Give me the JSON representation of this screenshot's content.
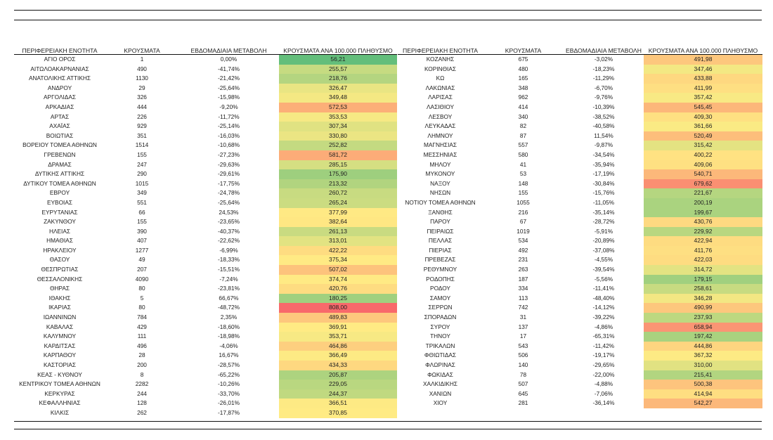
{
  "headers": [
    "ΠΕΡΙΦΕΡΕΙΑΚΗ ΕΝΟΤΗΤΑ",
    "ΚΡΟΥΣΜΑΤΑ",
    "ΕΒΔΟΜΑΔΙΑΙΑ ΜΕΤΑΒΟΛΗ",
    "ΚΡΟΥΣΜΑΤΑ ΑΝΑ 100.000 ΠΛΗΘΥΣΜΟ"
  ],
  "heat_colors": {
    "green": "#63be7b",
    "yellow": "#ffeb84",
    "red": "#f8696b"
  },
  "heat_range": {
    "min": 56.21,
    "mid": 370.85,
    "max": 808.0
  },
  "left_rows": [
    [
      "ΑΓΙΟ ΟΡΟΣ",
      "1",
      "0,00%",
      "56,21"
    ],
    [
      "ΑΙΤΩΛΟΑΚΑΡΝΑΝΙΑΣ",
      "490",
      "-41,74%",
      "255,57"
    ],
    [
      "ΑΝΑΤΟΛΙΚΗΣ ΑΤΤΙΚΗΣ",
      "1130",
      "-21,42%",
      "218,76"
    ],
    [
      "ΑΝΔΡΟΥ",
      "29",
      "-25,64%",
      "326,47"
    ],
    [
      "ΑΡΓΟΛΙΔΑΣ",
      "326",
      "-15,98%",
      "349,48"
    ],
    [
      "ΑΡΚΑΔΙΑΣ",
      "444",
      "-9,20%",
      "572,53"
    ],
    [
      "ΑΡΤΑΣ",
      "226",
      "-11,72%",
      "353,53"
    ],
    [
      "ΑΧΑΪΑΣ",
      "929",
      "-25,14%",
      "307,34"
    ],
    [
      "ΒΟΙΩΤΙΑΣ",
      "351",
      "-16,03%",
      "330,80"
    ],
    [
      "ΒΟΡΕΙΟΥ ΤΟΜΕΑ ΑΘΗΝΩΝ",
      "1514",
      "-10,68%",
      "252,82"
    ],
    [
      "ΓΡΕΒΕΝΩΝ",
      "155",
      "-27,23%",
      "581,72"
    ],
    [
      "ΔΡΑΜΑΣ",
      "247",
      "-29,63%",
      "285,15"
    ],
    [
      "ΔΥΤΙΚΗΣ ΑΤΤΙΚΗΣ",
      "290",
      "-29,61%",
      "175,90"
    ],
    [
      "ΔΥΤΙΚΟΥ ΤΟΜΕΑ ΑΘΗΝΩΝ",
      "1015",
      "-17,75%",
      "213,32"
    ],
    [
      "ΕΒΡΟΥ",
      "349",
      "-24,78%",
      "260,72"
    ],
    [
      "ΕΥΒΟΙΑΣ",
      "551",
      "-25,64%",
      "265,24"
    ],
    [
      "ΕΥΡΥΤΑΝΙΑΣ",
      "66",
      "24,53%",
      "377,99"
    ],
    [
      "ΖΑΚΥΝΘΟΥ",
      "155",
      "-23,65%",
      "382,64"
    ],
    [
      "ΗΛΕΙΑΣ",
      "390",
      "-40,37%",
      "261,13"
    ],
    [
      "ΗΜΑΘΙΑΣ",
      "407",
      "-22,62%",
      "313,01"
    ],
    [
      "ΗΡΑΚΛΕΙΟΥ",
      "1277",
      "-6,99%",
      "422,22"
    ],
    [
      "ΘΑΣΟΥ",
      "49",
      "-18,33%",
      "375,34"
    ],
    [
      "ΘΕΣΠΡΩΤΙΑΣ",
      "207",
      "-15,51%",
      "507,02"
    ],
    [
      "ΘΕΣΣΑΛΟΝΙΚΗΣ",
      "4090",
      "-7,24%",
      "374,74"
    ],
    [
      "ΘΗΡΑΣ",
      "80",
      "-23,81%",
      "420,76"
    ],
    [
      "ΙΘΑΚΗΣ",
      "5",
      "66,67%",
      "180,25"
    ],
    [
      "ΙΚΑΡΙΑΣ",
      "80",
      "-48,72%",
      "808,00"
    ],
    [
      "ΙΩΑΝΝΙΝΩΝ",
      "784",
      "2,35%",
      "489,83"
    ],
    [
      "ΚΑΒΑΛΑΣ",
      "429",
      "-18,60%",
      "369,91"
    ],
    [
      "ΚΑΛΥΜΝΟΥ",
      "111",
      "-18,98%",
      "353,71"
    ],
    [
      "ΚΑΡΔΙΤΣΑΣ",
      "496",
      "-4,06%",
      "464,86"
    ],
    [
      "ΚΑΡΠΑΘΟΥ",
      "28",
      "16,67%",
      "366,49"
    ],
    [
      "ΚΑΣΤΟΡΙΑΣ",
      "200",
      "-28,57%",
      "434,33"
    ],
    [
      "ΚΕΑΣ - ΚΥΘΝΟΥ",
      "8",
      "-65,22%",
      "205,87"
    ],
    [
      "ΚΕΝΤΡΙΚΟΥ ΤΟΜΕΑ ΑΘΗΝΩΝ",
      "2282",
      "-10,26%",
      "229,05"
    ],
    [
      "ΚΕΡΚΥΡΑΣ",
      "244",
      "-33,70%",
      "244,37"
    ],
    [
      "ΚΕΦΑΛΛΗΝΙΑΣ",
      "128",
      "-26,01%",
      "366,51"
    ],
    [
      "ΚΙΛΚΙΣ",
      "262",
      "-17,87%",
      "370,85"
    ]
  ],
  "right_rows": [
    [
      "ΚΟΖΑΝΗΣ",
      "675",
      "-3,02%",
      "491,98"
    ],
    [
      "ΚΟΡΙΝΘΙΑΣ",
      "480",
      "-18,23%",
      "347,46"
    ],
    [
      "ΚΩ",
      "165",
      "-11,29%",
      "433,88"
    ],
    [
      "ΛΑΚΩΝΙΑΣ",
      "348",
      "-6,70%",
      "411,99"
    ],
    [
      "ΛΑΡΙΣΑΣ",
      "962",
      "-9,76%",
      "357,42"
    ],
    [
      "ΛΑΣΙΘΙΟΥ",
      "414",
      "-10,39%",
      "545,45"
    ],
    [
      "ΛΕΣΒΟΥ",
      "340",
      "-38,52%",
      "409,30"
    ],
    [
      "ΛΕΥΚΑΔΑΣ",
      "82",
      "-40,58%",
      "361,66"
    ],
    [
      "ΛΗΜΝΟΥ",
      "87",
      "11,54%",
      "520,49"
    ],
    [
      "ΜΑΓΝΗΣΙΑΣ",
      "557",
      "-9,87%",
      "315,42"
    ],
    [
      "ΜΕΣΣΗΝΙΑΣ",
      "580",
      "-34,54%",
      "400,22"
    ],
    [
      "ΜΗΛΟΥ",
      "41",
      "-35,94%",
      "409,06"
    ],
    [
      "ΜΥΚΟΝΟΥ",
      "53",
      "-17,19%",
      "540,71"
    ],
    [
      "ΝΑΞΟΥ",
      "148",
      "-30,84%",
      "679,62"
    ],
    [
      "ΝΗΣΩΝ",
      "155",
      "-15,76%",
      "221,67"
    ],
    [
      "ΝΟΤΙΟΥ ΤΟΜΕΑ ΑΘΗΝΩΝ",
      "1055",
      "-11,05%",
      "200,19"
    ],
    [
      "ΞΑΝΘΗΣ",
      "216",
      "-35,14%",
      "199,67"
    ],
    [
      "ΠΑΡΟΥ",
      "67",
      "-28,72%",
      "430,76"
    ],
    [
      "ΠΕΙΡΑΙΩΣ",
      "1019",
      "-5,91%",
      "229,92"
    ],
    [
      "ΠΕΛΛΑΣ",
      "534",
      "-20,89%",
      "422,94"
    ],
    [
      "ΠΙΕΡΙΑΣ",
      "492",
      "-37,08%",
      "411,76"
    ],
    [
      "ΠΡΕΒΕΖΑΣ",
      "231",
      "-4,55%",
      "422,03"
    ],
    [
      "ΡΕΘΥΜΝΟΥ",
      "263",
      "-39,54%",
      "314,72"
    ],
    [
      "ΡΟΔΟΠΗΣ",
      "187",
      "-5,56%",
      "179,15"
    ],
    [
      "ΡΟΔΟΥ",
      "334",
      "-11,41%",
      "258,61"
    ],
    [
      "ΣΑΜΟΥ",
      "113",
      "-48,40%",
      "346,28"
    ],
    [
      "ΣΕΡΡΩΝ",
      "742",
      "-14,12%",
      "490,99"
    ],
    [
      "ΣΠΟΡΑΔΩΝ",
      "31",
      "-39,22%",
      "237,93"
    ],
    [
      "ΣΥΡΟΥ",
      "137",
      "-4,86%",
      "658,94"
    ],
    [
      "ΤΗΝΟΥ",
      "17",
      "-65,31%",
      "197,42"
    ],
    [
      "ΤΡΙΚΑΛΩΝ",
      "543",
      "-11,42%",
      "444,86"
    ],
    [
      "ΦΘΙΩΤΙΔΑΣ",
      "506",
      "-19,17%",
      "367,32"
    ],
    [
      "ΦΛΩΡΙΝΑΣ",
      "140",
      "-29,65%",
      "310,00"
    ],
    [
      "ΦΩΚΙΔΑΣ",
      "78",
      "-22,00%",
      "215,41"
    ],
    [
      "ΧΑΛΚΙΔΙΚΗΣ",
      "507",
      "-4,88%",
      "500,38"
    ],
    [
      "ΧΑΝΙΩΝ",
      "645",
      "-7,06%",
      "414,94"
    ],
    [
      "ΧΙΟΥ",
      "281",
      "-36,14%",
      "542,27"
    ]
  ]
}
